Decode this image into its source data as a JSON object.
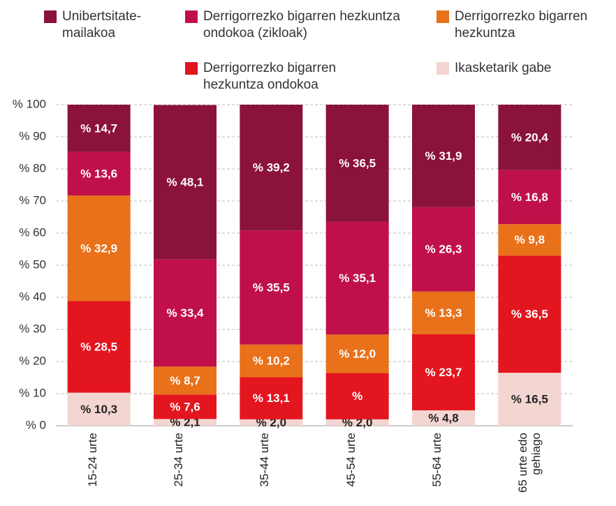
{
  "chart_data": {
    "type": "stacked_bar",
    "categories": [
      "15-24 urte",
      "25-34 urte",
      "35-44 urte",
      "45-54 urte",
      "55-64 urte",
      "65 urte edo gehiago"
    ],
    "series": [
      {
        "name": "Unibertsitate-mailakoa",
        "color": "#8b1239",
        "values": [
          14.7,
          48.1,
          39.2,
          36.5,
          31.9,
          20.4
        ],
        "value_labels": [
          "% 14,7",
          "% 48,1",
          "% 39,2",
          "% 36,5",
          "% 31,9",
          "% 20,4"
        ]
      },
      {
        "name": "Derrigorrezko bigarren hezkuntza ondokoa (zikloak)",
        "color": "#c0104a",
        "values": [
          13.6,
          33.4,
          35.5,
          35.1,
          26.3,
          16.8
        ],
        "value_labels": [
          "% 13,6",
          "% 33,4",
          "% 35,5",
          "% 35,1",
          "% 26,3",
          "% 16,8"
        ]
      },
      {
        "name": "Derrigorrezko bigarren hezkuntza",
        "color": "#e8711a",
        "values": [
          32.9,
          8.7,
          10.2,
          12.0,
          13.3,
          9.8
        ],
        "value_labels": [
          "% 32,9",
          "% 8,7",
          "% 10,2",
          "% 12,0",
          "% 13,3",
          "% 9,8"
        ]
      },
      {
        "name": "Derrigorrezko bigarren hezkuntza ondokoa",
        "color": "#e3151f",
        "values": [
          28.5,
          7.6,
          13.1,
          14.4,
          23.7,
          36.5
        ],
        "value_labels": [
          "% 28,5",
          "% 7,6",
          "% 13,1",
          "%",
          "% 23,7",
          "% 36,5"
        ]
      },
      {
        "name": "Ikasketarik gabe",
        "color": "#f3d5d1",
        "values": [
          10.3,
          2.1,
          2.0,
          2.0,
          4.8,
          16.5
        ],
        "value_labels": [
          "% 10,3",
          "% 2,1",
          "% 2,0",
          "% 2,0",
          "% 4,8",
          "% 16,5"
        ]
      }
    ],
    "ylim": [
      0,
      100
    ],
    "yticks": [
      {
        "value": 0,
        "label": "% 0"
      },
      {
        "value": 10,
        "label": "% 10"
      },
      {
        "value": 20,
        "label": "% 20"
      },
      {
        "value": 30,
        "label": "% 30"
      },
      {
        "value": 40,
        "label": "% 40"
      },
      {
        "value": 50,
        "label": "% 50"
      },
      {
        "value": 60,
        "label": "% 60"
      },
      {
        "value": 70,
        "label": "% 70"
      },
      {
        "value": 80,
        "label": "% 80"
      },
      {
        "value": 90,
        "label": "% 90"
      },
      {
        "value": 100,
        "label": "% 100"
      }
    ],
    "grid": true
  }
}
